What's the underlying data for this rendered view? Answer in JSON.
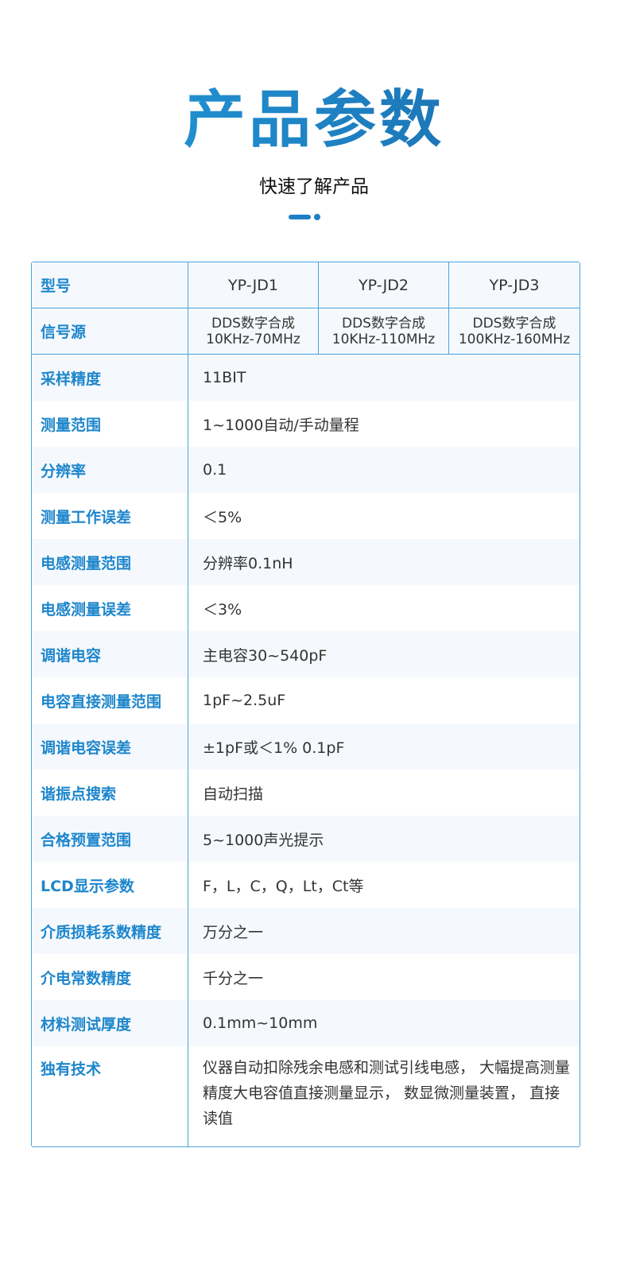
{
  "header": {
    "title": "产品参数",
    "subtitle": "快速了解产品"
  },
  "table": {
    "model_label": "型号",
    "models": [
      "YP-JD1",
      "YP-JD2",
      "YP-JD3"
    ],
    "source_label": "信号源",
    "sources": [
      [
        "DDS数字合成",
        "10KHz-70MHz"
      ],
      [
        "DDS数字合成",
        "10KHz-110MHz"
      ],
      [
        "DDS数字合成",
        "100KHz-160MHz"
      ]
    ],
    "rows": [
      {
        "k": "采样精度",
        "v": "11BIT"
      },
      {
        "k": "测量范围",
        "v": "1~1000自动/手动量程"
      },
      {
        "k": "分辨率",
        "v": "0.1"
      },
      {
        "k": "测量工作误差",
        "v": "＜5%"
      },
      {
        "k": "电感测量范围",
        "v": "分辨率0.1nH"
      },
      {
        "k": "电感测量误差",
        "v": "＜3%"
      },
      {
        "k": "调谐电容",
        "v": "主电容30~540pF"
      },
      {
        "k": "电容直接测量范围",
        "v": "1pF~2.5uF"
      },
      {
        "k": "调谐电容误差",
        "v": "±1pF或＜1% 0.1pF"
      },
      {
        "k": "谐振点搜索",
        "v": "自动扫描"
      },
      {
        "k": "合格预置范围",
        "v": "5~1000声光提示"
      },
      {
        "k": "LCD显示参数",
        "v": "F，L，C，Q，Lt，Ct等"
      },
      {
        "k": "介质损耗系数精度",
        "v": "万分之一"
      },
      {
        "k": "介电常数精度",
        "v": "千分之一"
      },
      {
        "k": "材料测试厚度",
        "v": "0.1mm~10mm"
      },
      {
        "k": "独有技术",
        "v": "仪器自动扣除残余电感和测试引线电感， 大幅提高测量 精度大电容值直接测量显示， 数显微测量装置， 直接读值"
      }
    ]
  }
}
